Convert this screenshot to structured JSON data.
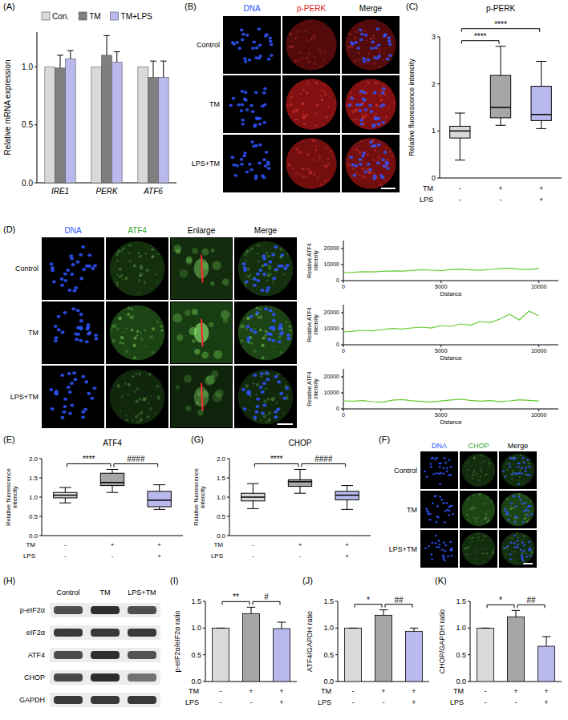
{
  "chart_data": [
    {
      "panel": "(A)",
      "type": "bar",
      "y_label": "Relative mRNA expression",
      "categories": [
        "IRE1",
        "PERK",
        "ATF6"
      ],
      "series": [
        {
          "name": "Con.",
          "color": "#d9d9d9",
          "values": [
            1,
            1,
            1
          ]
        },
        {
          "name": "TM",
          "color": "#7f7f7f",
          "values": [
            0.99,
            1.1,
            0.91
          ],
          "errors": [
            0.11,
            0.17,
            0.14
          ]
        },
        {
          "name": "TM+LPS",
          "color": "#b9b9ee",
          "values": [
            1.07,
            1.04,
            0.91
          ],
          "errors": [
            0.07,
            0.09,
            0.14
          ]
        }
      ],
      "ylim": [
        0,
        1.3
      ],
      "yticks": [
        {
          "value": 0,
          "label": "0.0"
        },
        {
          "value": 0.5,
          "label": "0.5"
        },
        {
          "value": 1,
          "label": "1.0"
        }
      ],
      "legend": "top"
    },
    {
      "panel": "(C)",
      "type": "box",
      "title": "p-PERK",
      "y_label": "Relative fluorescence intencity",
      "boxes": [
        {
          "min": 0.38,
          "q1": 0.85,
          "median": 1.0,
          "q3": 1.1,
          "max": 1.38
        },
        {
          "min": 1.12,
          "q1": 1.28,
          "median": 1.5,
          "q3": 2.18,
          "max": 2.8
        },
        {
          "min": 1.05,
          "q1": 1.22,
          "median": 1.35,
          "q3": 1.95,
          "max": 2.48
        }
      ],
      "colors": [
        "#d9d9d9",
        "#a6a6a6",
        "#b9b9ee"
      ],
      "ylim": [
        0,
        3
      ],
      "yticks": [
        0,
        1,
        2,
        3
      ],
      "conditions": [
        {
          "label": "TM",
          "values": [
            "-",
            "+",
            "+"
          ]
        },
        {
          "label": "LPS",
          "values": [
            "-",
            "-",
            "+"
          ]
        }
      ],
      "annotations": [
        {
          "text": "****",
          "groups": [
            0,
            1
          ]
        },
        {
          "text": "****",
          "groups": [
            0,
            2
          ]
        }
      ]
    },
    {
      "type": "line",
      "y_label": "Relative ATF4 intensity",
      "x_label": "Distance",
      "x": [
        0,
        500,
        1000,
        1500,
        2000,
        2500,
        3000,
        3500,
        4000,
        4500,
        5000,
        5500,
        6000,
        6500,
        7000,
        7500,
        8000,
        8500,
        9000,
        9500,
        10000
      ],
      "values": [
        5000,
        5200,
        5600,
        5400,
        5800,
        6100,
        5900,
        6300,
        6800,
        6500,
        6200,
        6900,
        7100,
        6700,
        6400,
        7000,
        7400,
        7800,
        7200,
        6900,
        7600
      ],
      "color": "#66cc33",
      "xlim": [
        0,
        11000
      ],
      "xticks": [
        0,
        5000,
        10000
      ],
      "ylim": [
        0,
        25000
      ],
      "yticks": [
        0,
        10000,
        20000
      ]
    },
    {
      "type": "line",
      "y_label": "Relative ATF4 intensity",
      "x_label": "Distance",
      "x": [
        0,
        500,
        1000,
        1500,
        2000,
        2500,
        3000,
        3500,
        4000,
        4500,
        5000,
        5500,
        6000,
        6500,
        7000,
        7500,
        8000,
        8500,
        9000,
        9500,
        10000
      ],
      "values": [
        8000,
        8400,
        9000,
        8700,
        9500,
        10200,
        9800,
        10500,
        11000,
        10400,
        12000,
        11500,
        13000,
        12200,
        14500,
        13800,
        16000,
        19000,
        15500,
        21000,
        18000
      ],
      "color": "#66cc33",
      "xlim": [
        0,
        11000
      ],
      "xticks": [
        0,
        5000,
        10000
      ],
      "ylim": [
        0,
        25000
      ],
      "yticks": [
        0,
        10000,
        20000
      ]
    },
    {
      "type": "line",
      "y_label": "Relative ATF4 intensity",
      "x_label": "Distance",
      "x": [
        0,
        500,
        1000,
        1500,
        2000,
        2500,
        3000,
        3500,
        4000,
        4500,
        5000,
        5500,
        6000,
        6500,
        7000,
        7500,
        8000,
        8500,
        9000,
        9500,
        10000
      ],
      "values": [
        5000,
        4800,
        5200,
        4500,
        4200,
        5400,
        5800,
        5100,
        4700,
        4300,
        4900,
        5600,
        6100,
        5300,
        4800,
        5200,
        4600,
        5000,
        5700,
        5300,
        4900
      ],
      "color": "#66cc33",
      "xlim": [
        0,
        11000
      ],
      "xticks": [
        0,
        5000,
        10000
      ],
      "ylim": [
        0,
        25000
      ],
      "yticks": [
        0,
        10000,
        20000
      ]
    },
    {
      "panel": "(E)",
      "type": "box",
      "title": "ATF4",
      "y_label": "Relative fluorescence intencity",
      "boxes": [
        {
          "min": 0.85,
          "q1": 0.98,
          "median": 1.05,
          "q3": 1.12,
          "max": 1.25
        },
        {
          "min": 1.12,
          "q1": 1.3,
          "median": 1.38,
          "q3": 1.62,
          "max": 1.72
        },
        {
          "min": 0.68,
          "q1": 0.75,
          "median": 0.92,
          "q3": 1.15,
          "max": 1.32
        }
      ],
      "colors": [
        "#d9d9d9",
        "#a6a6a6",
        "#b9b9ee"
      ],
      "ylim": [
        0,
        2
      ],
      "yticks": [
        {
          "value": 0,
          "label": "0.0"
        },
        {
          "value": 0.5,
          "label": "0.5"
        },
        {
          "value": 1,
          "label": "1.0"
        },
        {
          "value": 1.5,
          "label": "1.5"
        },
        {
          "value": 2,
          "label": "2.0"
        }
      ],
      "conditions": [
        {
          "label": "TM",
          "values": [
            "-",
            "+",
            "+"
          ]
        },
        {
          "label": "LPS",
          "values": [
            "-",
            "-",
            "+"
          ]
        }
      ],
      "annotations": [
        {
          "text": "****",
          "groups": [
            0,
            1
          ]
        },
        {
          "text": "####",
          "groups": [
            1,
            2
          ]
        }
      ]
    },
    {
      "panel": "(G)",
      "type": "box",
      "title": "CHOP",
      "y_label": "Relative fluorescence intencity",
      "boxes": [
        {
          "min": 0.7,
          "q1": 0.9,
          "median": 1.0,
          "q3": 1.1,
          "max": 1.35
        },
        {
          "min": 1.1,
          "q1": 1.28,
          "median": 1.4,
          "q3": 1.45,
          "max": 1.72
        },
        {
          "min": 0.68,
          "q1": 0.93,
          "median": 1.05,
          "q3": 1.15,
          "max": 1.3
        }
      ],
      "colors": [
        "#d9d9d9",
        "#a6a6a6",
        "#b9b9ee"
      ],
      "ylim": [
        0,
        2
      ],
      "yticks": [
        {
          "value": 0,
          "label": "0.0"
        },
        {
          "value": 0.5,
          "label": "0.5"
        },
        {
          "value": 1,
          "label": "1.0"
        },
        {
          "value": 1.5,
          "label": "1.5"
        },
        {
          "value": 2,
          "label": "2.0"
        }
      ],
      "conditions": [
        {
          "label": "TM",
          "values": [
            "-",
            "+",
            "+"
          ]
        },
        {
          "label": "LPS",
          "values": [
            "-",
            "-",
            "+"
          ]
        }
      ],
      "annotations": [
        {
          "text": "****",
          "groups": [
            0,
            1
          ]
        },
        {
          "text": "####",
          "groups": [
            1,
            2
          ]
        }
      ]
    },
    {
      "panel": "(I)",
      "type": "bar",
      "y_label": "p-eIF2α/eIF2α ratio",
      "values": [
        1,
        1.27,
        0.99
      ],
      "errors": [
        0,
        0.12,
        0.12
      ],
      "colors": [
        "#d9d9d9",
        "#a6a6a6",
        "#b9b9ee"
      ],
      "ylim": [
        0,
        1.5
      ],
      "yticks": [
        {
          "value": 0,
          "label": "0.0"
        },
        {
          "value": 0.5,
          "label": "0.5"
        },
        {
          "value": 1,
          "label": "1.0"
        },
        {
          "value": 1.5,
          "label": "1.5"
        }
      ],
      "conditions": [
        {
          "label": "TM",
          "values": [
            "-",
            "+",
            "+"
          ]
        },
        {
          "label": "LPS",
          "values": [
            "-",
            "-",
            "+"
          ]
        }
      ],
      "annotations": [
        {
          "text": "**",
          "groups": [
            0,
            1
          ]
        },
        {
          "text": "#",
          "groups": [
            1,
            2
          ]
        }
      ]
    },
    {
      "panel": "(J)",
      "type": "bar",
      "y_label": "ATF4/GAPDH ratio",
      "values": [
        1,
        1.24,
        0.94
      ],
      "errors": [
        0,
        0.1,
        0.06
      ],
      "colors": [
        "#d9d9d9",
        "#a6a6a6",
        "#b9b9ee"
      ],
      "ylim": [
        0,
        1.5
      ],
      "yticks": [
        {
          "value": 0,
          "label": "0.0"
        },
        {
          "value": 0.5,
          "label": "0.5"
        },
        {
          "value": 1,
          "label": "1.0"
        },
        {
          "value": 1.5,
          "label": "1.5"
        }
      ],
      "conditions": [
        {
          "label": "TM",
          "values": [
            "-",
            "+",
            "+"
          ]
        },
        {
          "label": "LPS",
          "values": [
            "-",
            "-",
            "+"
          ]
        }
      ],
      "annotations": [
        {
          "text": "*",
          "groups": [
            0,
            1
          ]
        },
        {
          "text": "##",
          "groups": [
            1,
            2
          ]
        }
      ]
    },
    {
      "panel": "(K)",
      "type": "bar",
      "y_label": "CHOP/GAPDH ratio",
      "values": [
        1,
        1.21,
        0.66
      ],
      "errors": [
        0,
        0.12,
        0.18
      ],
      "colors": [
        "#d9d9d9",
        "#a6a6a6",
        "#b9b9ee"
      ],
      "ylim": [
        0,
        1.5
      ],
      "yticks": [
        {
          "value": 0,
          "label": "0.0"
        },
        {
          "value": 0.5,
          "label": "0.5"
        },
        {
          "value": 1,
          "label": "1.0"
        },
        {
          "value": 1.5,
          "label": "1.5"
        }
      ],
      "conditions": [
        {
          "label": "TM",
          "values": [
            "-",
            "+",
            "+"
          ]
        },
        {
          "label": "LPS",
          "values": [
            "-",
            "-",
            "+"
          ]
        }
      ],
      "annotations": [
        {
          "text": "*",
          "groups": [
            0,
            1
          ]
        },
        {
          "text": "##",
          "groups": [
            1,
            2
          ]
        }
      ]
    }
  ],
  "images": [
    {
      "panel": "(B)",
      "columns": [
        "DNA",
        "p-PERK",
        "Merge"
      ],
      "rows": [
        "Control",
        "TM",
        "LPS+TM"
      ]
    },
    {
      "panel": "(D)",
      "columns": [
        "DNA",
        "ATF4",
        "Enlarge",
        "Merge"
      ],
      "rows": [
        "Control",
        "TM",
        "LPS+TM"
      ]
    },
    {
      "panel": "(F)",
      "columns": [
        "DNA",
        "CHOP",
        "Merge"
      ],
      "rows": [
        "Control",
        "TM",
        "LPS+TM"
      ]
    }
  ],
  "blot": {
    "panel": "(H)",
    "columns": [
      "Control",
      "TM",
      "LPS+TM"
    ],
    "rows": [
      "p-eIF2α",
      "eIF2α",
      "ATF4",
      "CHOP",
      "GAPDH"
    ]
  }
}
